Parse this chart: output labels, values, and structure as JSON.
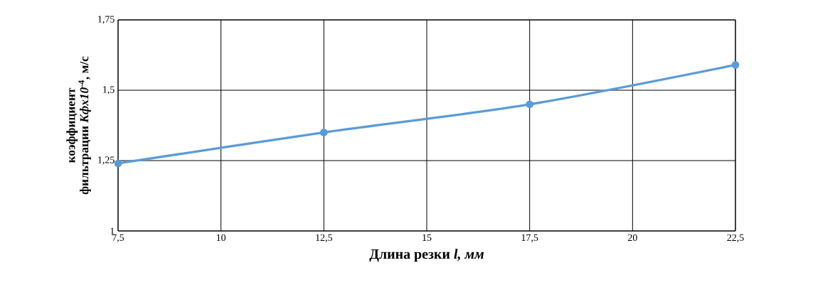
{
  "chart_data": {
    "type": "line",
    "xlabel": "Длина резки *l, мм*",
    "ylabel": "коэффициент фильтрации *Kфx10*$^{-4}$, м/с",
    "x": [
      7.5,
      12.5,
      17.5,
      22.5
    ],
    "series": [
      {
        "color": "#5b9bd5",
        "values": [
          1.24,
          1.35,
          1.45,
          1.59
        ]
      }
    ],
    "xlim": [
      7.5,
      22.5
    ],
    "xticks": [
      {
        "value": 7.5,
        "label": "7,5"
      },
      10,
      {
        "value": 12.5,
        "label": "12,5"
      },
      15,
      {
        "value": 17.5,
        "label": "17,5"
      },
      20,
      {
        "value": 22.5,
        "label": "22,5"
      }
    ],
    "ylim": [
      1,
      1.75
    ],
    "yticks": [
      1,
      {
        "value": 1.25,
        "label": "1,25"
      },
      {
        "value": 1.5,
        "label": "1,5"
      },
      {
        "value": 1.75,
        "label": "1,75"
      }
    ],
    "grid": true,
    "marker": "circle",
    "line_style": "solid"
  }
}
